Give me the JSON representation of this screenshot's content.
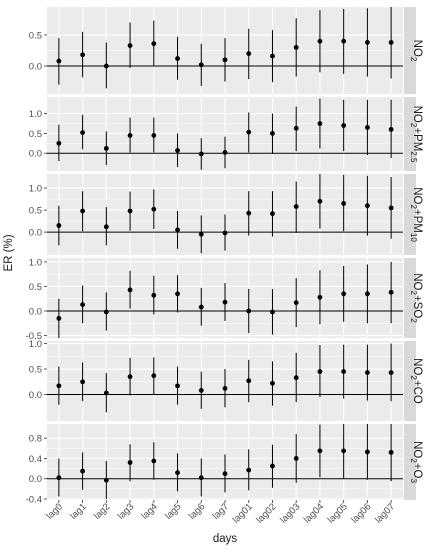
{
  "chart_data": {
    "type": "errorbar",
    "ylabel": "ER (%)",
    "xlabel": "days",
    "categories": [
      "lag0",
      "lag1",
      "lag2",
      "lag3",
      "lag4",
      "lag5",
      "lag6",
      "lag7",
      "lag01",
      "lag02",
      "lag03",
      "lag04",
      "lag05",
      "lag06",
      "lag07"
    ],
    "colors": {
      "panel_bg": "#ebebeb",
      "strip_bg": "#d9d9d9",
      "grid": "#ffffff",
      "point": "#000000",
      "zero_line": "#000000",
      "axis_text": "#4d4d4d"
    },
    "panels": [
      {
        "label_main": "NO",
        "label_sub": "2",
        "label_rest": "",
        "ylim": [
          -0.45,
          0.95
        ],
        "yticks": [
          {
            "v": 0.0,
            "t": "0.0"
          },
          {
            "v": 0.5,
            "t": "0.5"
          }
        ],
        "points": [
          {
            "est": 0.08,
            "lo": -0.3,
            "hi": 0.45
          },
          {
            "est": 0.18,
            "lo": -0.18,
            "hi": 0.55
          },
          {
            "est": 0.0,
            "lo": -0.36,
            "hi": 0.38
          },
          {
            "est": 0.33,
            "lo": -0.03,
            "hi": 0.7
          },
          {
            "est": 0.36,
            "lo": 0.0,
            "hi": 0.73
          },
          {
            "est": 0.12,
            "lo": -0.22,
            "hi": 0.47
          },
          {
            "est": 0.02,
            "lo": -0.32,
            "hi": 0.36
          },
          {
            "est": 0.1,
            "lo": -0.25,
            "hi": 0.45
          },
          {
            "est": 0.2,
            "lo": -0.21,
            "hi": 0.6
          },
          {
            "est": 0.16,
            "lo": -0.26,
            "hi": 0.58
          },
          {
            "est": 0.3,
            "lo": -0.17,
            "hi": 0.77
          },
          {
            "est": 0.4,
            "lo": -0.1,
            "hi": 0.9
          },
          {
            "est": 0.4,
            "lo": -0.13,
            "hi": 0.92
          },
          {
            "est": 0.38,
            "lo": -0.17,
            "hi": 0.93
          },
          {
            "est": 0.38,
            "lo": -0.2,
            "hi": 0.95
          }
        ]
      },
      {
        "label_main": "NO",
        "label_sub": "2",
        "label_rest": "+PM",
        "label_sub2": "2.5",
        "ylim": [
          -0.45,
          1.42
        ],
        "yticks": [
          {
            "v": 0.0,
            "t": "0.0"
          },
          {
            "v": 0.5,
            "t": "0.5"
          },
          {
            "v": 1.0,
            "t": "1.0"
          }
        ],
        "points": [
          {
            "est": 0.25,
            "lo": -0.2,
            "hi": 0.72
          },
          {
            "est": 0.52,
            "lo": 0.1,
            "hi": 0.97
          },
          {
            "est": 0.12,
            "lo": -0.3,
            "hi": 0.55
          },
          {
            "est": 0.45,
            "lo": 0.02,
            "hi": 0.9
          },
          {
            "est": 0.45,
            "lo": 0.02,
            "hi": 0.9
          },
          {
            "est": 0.07,
            "lo": -0.35,
            "hi": 0.5
          },
          {
            "est": -0.02,
            "lo": -0.42,
            "hi": 0.38
          },
          {
            "est": 0.02,
            "lo": -0.38,
            "hi": 0.42
          },
          {
            "est": 0.53,
            "lo": 0.02,
            "hi": 1.03
          },
          {
            "est": 0.5,
            "lo": -0.02,
            "hi": 1.0
          },
          {
            "est": 0.63,
            "lo": 0.05,
            "hi": 1.18
          },
          {
            "est": 0.75,
            "lo": 0.12,
            "hi": 1.38
          },
          {
            "est": 0.7,
            "lo": 0.05,
            "hi": 1.35
          },
          {
            "est": 0.65,
            "lo": -0.05,
            "hi": 1.35
          },
          {
            "est": 0.6,
            "lo": -0.12,
            "hi": 1.35
          }
        ]
      },
      {
        "label_main": "NO",
        "label_sub": "2",
        "label_rest": "+PM",
        "label_sub2": "10",
        "ylim": [
          -0.52,
          1.32
        ],
        "yticks": [
          {
            "v": 0.0,
            "t": "0.0"
          },
          {
            "v": 0.5,
            "t": "0.5"
          },
          {
            "v": 1.0,
            "t": "1.0"
          }
        ],
        "points": [
          {
            "est": 0.15,
            "lo": -0.3,
            "hi": 0.6
          },
          {
            "est": 0.48,
            "lo": 0.02,
            "hi": 0.93
          },
          {
            "est": 0.12,
            "lo": -0.3,
            "hi": 0.57
          },
          {
            "est": 0.48,
            "lo": 0.03,
            "hi": 0.92
          },
          {
            "est": 0.52,
            "lo": 0.07,
            "hi": 0.97
          },
          {
            "est": 0.05,
            "lo": -0.38,
            "hi": 0.48
          },
          {
            "est": -0.05,
            "lo": -0.48,
            "hi": 0.38
          },
          {
            "est": -0.02,
            "lo": -0.42,
            "hi": 0.4
          },
          {
            "est": 0.43,
            "lo": -0.08,
            "hi": 0.93
          },
          {
            "est": 0.42,
            "lo": -0.1,
            "hi": 0.93
          },
          {
            "est": 0.58,
            "lo": -0.02,
            "hi": 1.15
          },
          {
            "est": 0.7,
            "lo": 0.08,
            "hi": 1.32
          },
          {
            "est": 0.65,
            "lo": 0.02,
            "hi": 1.3
          },
          {
            "est": 0.6,
            "lo": -0.08,
            "hi": 1.28
          },
          {
            "est": 0.55,
            "lo": -0.15,
            "hi": 1.25
          }
        ]
      },
      {
        "label_main": "NO",
        "label_sub": "2",
        "label_rest": "+SO",
        "label_sub2": "2",
        "ylim": [
          -0.55,
          1.08
        ],
        "yticks": [
          {
            "v": -0.5,
            "t": "-0.5"
          },
          {
            "v": 0.0,
            "t": "0.0"
          },
          {
            "v": 0.5,
            "t": "0.5"
          },
          {
            "v": 1.0,
            "t": "1.0"
          }
        ],
        "points": [
          {
            "est": -0.15,
            "lo": -0.55,
            "hi": 0.25
          },
          {
            "est": 0.13,
            "lo": -0.25,
            "hi": 0.52
          },
          {
            "est": -0.02,
            "lo": -0.4,
            "hi": 0.38
          },
          {
            "est": 0.43,
            "lo": 0.05,
            "hi": 0.82
          },
          {
            "est": 0.32,
            "lo": -0.07,
            "hi": 0.72
          },
          {
            "est": 0.35,
            "lo": -0.03,
            "hi": 0.73
          },
          {
            "est": 0.08,
            "lo": -0.3,
            "hi": 0.47
          },
          {
            "est": 0.18,
            "lo": -0.2,
            "hi": 0.57
          },
          {
            "est": 0.0,
            "lo": -0.45,
            "hi": 0.45
          },
          {
            "est": -0.02,
            "lo": -0.48,
            "hi": 0.45
          },
          {
            "est": 0.17,
            "lo": -0.33,
            "hi": 0.67
          },
          {
            "est": 0.28,
            "lo": -0.27,
            "hi": 0.83
          },
          {
            "est": 0.35,
            "lo": -0.22,
            "hi": 0.92
          },
          {
            "est": 0.35,
            "lo": -0.25,
            "hi": 0.95
          },
          {
            "est": 0.38,
            "lo": -0.25,
            "hi": 1.0
          }
        ]
      },
      {
        "label_main": "NO",
        "label_sub": "2",
        "label_rest": "+CO",
        "ylim": [
          -0.52,
          1.05
        ],
        "yticks": [
          {
            "v": 0.0,
            "t": "0.0"
          },
          {
            "v": 0.5,
            "t": "0.5"
          },
          {
            "v": 1.0,
            "t": "1.0"
          }
        ],
        "points": [
          {
            "est": 0.17,
            "lo": -0.2,
            "hi": 0.55
          },
          {
            "est": 0.25,
            "lo": -0.13,
            "hi": 0.63
          },
          {
            "est": 0.03,
            "lo": -0.35,
            "hi": 0.42
          },
          {
            "est": 0.35,
            "lo": -0.02,
            "hi": 0.72
          },
          {
            "est": 0.37,
            "lo": 0.0,
            "hi": 0.73
          },
          {
            "est": 0.17,
            "lo": -0.2,
            "hi": 0.55
          },
          {
            "est": 0.08,
            "lo": -0.28,
            "hi": 0.45
          },
          {
            "est": 0.12,
            "lo": -0.25,
            "hi": 0.5
          },
          {
            "est": 0.27,
            "lo": -0.15,
            "hi": 0.68
          },
          {
            "est": 0.22,
            "lo": -0.22,
            "hi": 0.65
          },
          {
            "est": 0.33,
            "lo": -0.15,
            "hi": 0.82
          },
          {
            "est": 0.45,
            "lo": -0.05,
            "hi": 0.97
          },
          {
            "est": 0.45,
            "lo": -0.08,
            "hi": 0.98
          },
          {
            "est": 0.43,
            "lo": -0.12,
            "hi": 0.98
          },
          {
            "est": 0.43,
            "lo": -0.13,
            "hi": 1.0
          }
        ]
      },
      {
        "label_main": "NO",
        "label_sub": "2",
        "label_rest": "+O",
        "label_sub2": "3",
        "ylim": [
          -0.42,
          1.08
        ],
        "yticks": [
          {
            "v": -0.4,
            "t": "-0.4"
          },
          {
            "v": 0.0,
            "t": "0.0"
          },
          {
            "v": 0.4,
            "t": "0.4"
          },
          {
            "v": 0.8,
            "t": "0.8"
          }
        ],
        "points": [
          {
            "est": 0.02,
            "lo": -0.35,
            "hi": 0.4
          },
          {
            "est": 0.15,
            "lo": -0.22,
            "hi": 0.52
          },
          {
            "est": -0.03,
            "lo": -0.4,
            "hi": 0.35
          },
          {
            "est": 0.32,
            "lo": -0.05,
            "hi": 0.68
          },
          {
            "est": 0.35,
            "lo": -0.02,
            "hi": 0.72
          },
          {
            "est": 0.12,
            "lo": -0.25,
            "hi": 0.5
          },
          {
            "est": 0.02,
            "lo": -0.35,
            "hi": 0.4
          },
          {
            "est": 0.1,
            "lo": -0.27,
            "hi": 0.48
          },
          {
            "est": 0.17,
            "lo": -0.23,
            "hi": 0.58
          },
          {
            "est": 0.25,
            "lo": -0.18,
            "hi": 0.67
          },
          {
            "est": 0.4,
            "lo": -0.08,
            "hi": 0.88
          },
          {
            "est": 0.55,
            "lo": 0.03,
            "hi": 1.07
          },
          {
            "est": 0.55,
            "lo": 0.0,
            "hi": 1.08
          },
          {
            "est": 0.53,
            "lo": -0.02,
            "hi": 1.08
          },
          {
            "est": 0.52,
            "lo": -0.05,
            "hi": 1.08
          }
        ]
      }
    ]
  }
}
